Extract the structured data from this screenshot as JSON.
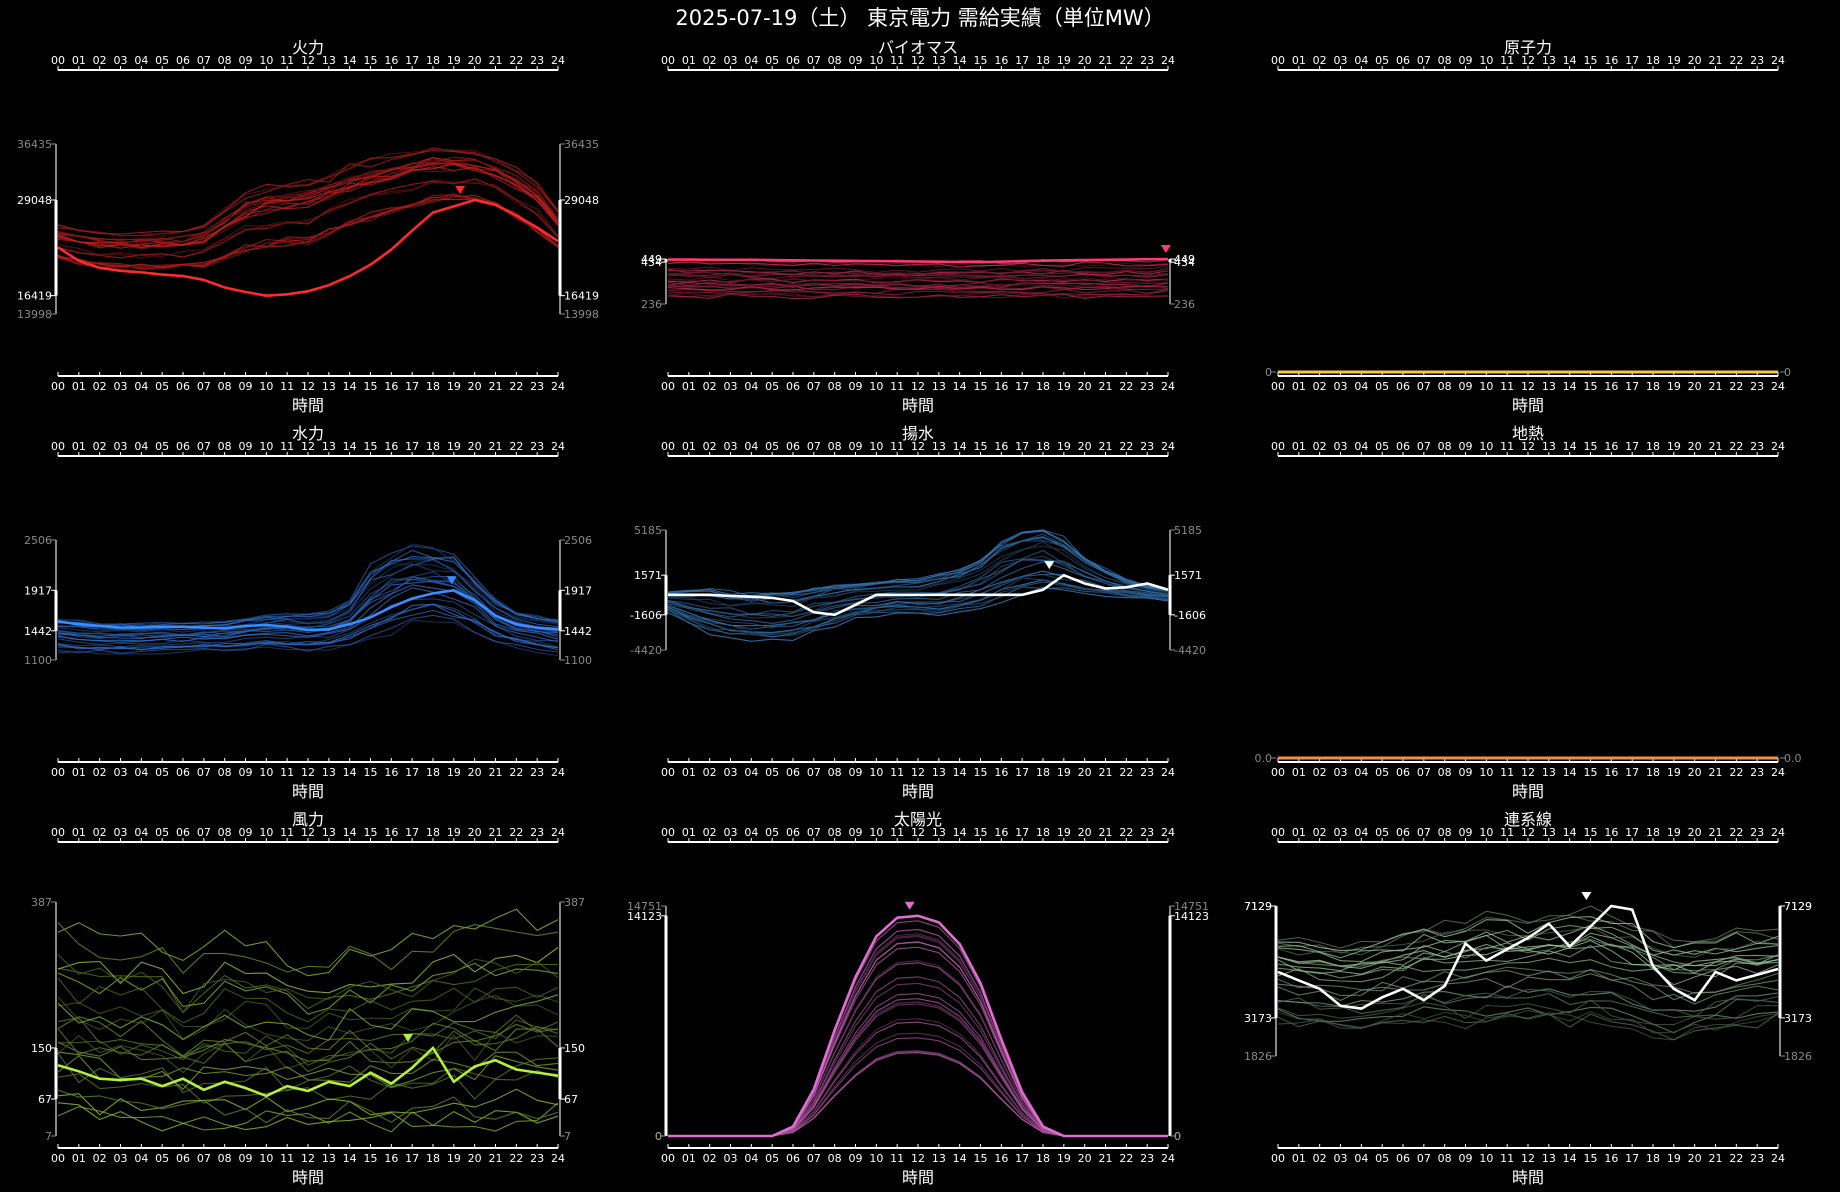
{
  "title": "2025-07-19（土） 東京電力 需給実績（単位MW）",
  "x_axis": {
    "ticks": [
      "00",
      "01",
      "02",
      "03",
      "04",
      "05",
      "06",
      "07",
      "08",
      "09",
      "10",
      "11",
      "12",
      "13",
      "14",
      "15",
      "16",
      "17",
      "18",
      "19",
      "20",
      "21",
      "22",
      "23",
      "24"
    ],
    "label": "時間"
  },
  "chart_data": [
    {
      "type": "line",
      "title": "火力",
      "color": "#ff2a2a",
      "min": 13998,
      "max": 36435,
      "cur_min": 16419,
      "cur_max": 29048,
      "hist_lo": [
        21000,
        20200,
        19800,
        19600,
        19500,
        19500,
        19500,
        19600,
        20500,
        21600,
        22000,
        22200,
        22500,
        23800,
        24800,
        25500,
        26500,
        27200,
        28000,
        28600,
        28400,
        27500,
        25800,
        24300,
        22000
      ],
      "hist_hi": [
        26000,
        25500,
        25100,
        25000,
        25000,
        25200,
        25500,
        26200,
        28500,
        30500,
        31500,
        32000,
        32300,
        33000,
        34500,
        35000,
        35600,
        36100,
        36435,
        36300,
        36000,
        35500,
        34000,
        32000,
        28000
      ],
      "current": [
        22800,
        21000,
        20100,
        19700,
        19500,
        19200,
        19000,
        18500,
        17500,
        16900,
        16419,
        16600,
        17000,
        17800,
        19000,
        20500,
        22500,
        25000,
        27400,
        28200,
        29048,
        28400,
        27000,
        25400,
        23600
      ],
      "peak_hour": 19.3
    },
    {
      "type": "line",
      "title": "バイオマス",
      "color": "#ff3a72",
      "min": 236,
      "max": 449,
      "cur_min": 434,
      "cur_max": 449,
      "hist_lo": [
        270,
        270,
        268,
        268,
        268,
        268,
        268,
        268,
        268,
        268,
        268,
        268,
        268,
        268,
        268,
        268,
        268,
        268,
        268,
        268,
        268,
        268,
        268,
        268,
        270
      ],
      "hist_hi": [
        448,
        448,
        447,
        446,
        446,
        444,
        444,
        443,
        442,
        441,
        440,
        440,
        440,
        440,
        440,
        441,
        442,
        443,
        445,
        446,
        446,
        446,
        447,
        448,
        449
      ],
      "current": [
        446,
        446,
        445,
        445,
        445,
        444,
        443,
        442,
        441,
        440,
        439,
        438,
        437,
        436,
        435,
        434,
        436,
        439,
        441,
        443,
        444,
        445,
        446,
        448,
        449
      ],
      "peak_hour": 23.9
    },
    {
      "type": "line",
      "title": "原子力",
      "color": "#f5c742",
      "min": 0,
      "max": 0,
      "cur_min": 0,
      "cur_max": 0,
      "current": [
        0,
        0,
        0,
        0,
        0,
        0,
        0,
        0,
        0,
        0,
        0,
        0,
        0,
        0,
        0,
        0,
        0,
        0,
        0,
        0,
        0,
        0,
        0,
        0,
        0
      ]
    },
    {
      "type": "line",
      "title": "水力",
      "color": "#3a8cff",
      "min": 1100,
      "max": 2506,
      "cur_min": 1442,
      "cur_max": 1917,
      "hist_lo": [
        1200,
        1180,
        1170,
        1170,
        1170,
        1180,
        1190,
        1200,
        1200,
        1210,
        1230,
        1220,
        1200,
        1210,
        1260,
        1300,
        1400,
        1500,
        1550,
        1500,
        1400,
        1300,
        1250,
        1200,
        1150
      ],
      "hist_hi": [
        1600,
        1580,
        1560,
        1560,
        1560,
        1560,
        1560,
        1570,
        1580,
        1620,
        1660,
        1680,
        1680,
        1700,
        1820,
        2250,
        2420,
        2506,
        2480,
        2400,
        2150,
        1850,
        1700,
        1650,
        1620
      ],
      "current": [
        1550,
        1520,
        1500,
        1480,
        1480,
        1490,
        1490,
        1480,
        1470,
        1500,
        1510,
        1490,
        1450,
        1460,
        1520,
        1600,
        1720,
        1820,
        1880,
        1917,
        1800,
        1620,
        1520,
        1480,
        1460
      ],
      "peak_hour": 18.9
    },
    {
      "type": "line",
      "title": "揚水",
      "color": "#4aa8ff",
      "min": -4420,
      "max": 5185,
      "cur_min": -1606,
      "cur_max": 1571,
      "hist_lo": [
        -1400,
        -2400,
        -3200,
        -3500,
        -3700,
        -3800,
        -3600,
        -3100,
        -2500,
        -2000,
        -1700,
        -1500,
        -1600,
        -1700,
        -1400,
        -1100,
        -600,
        0,
        200,
        0,
        0,
        -100,
        -200,
        -300,
        -500
      ],
      "hist_hi": [
        200,
        300,
        300,
        200,
        100,
        100,
        200,
        500,
        800,
        900,
        1000,
        1100,
        1200,
        1600,
        2000,
        2800,
        4200,
        5000,
        5185,
        4500,
        3000,
        2000,
        1200,
        700,
        400
      ],
      "current": [
        0,
        0,
        0,
        -100,
        -150,
        -250,
        -500,
        -1400,
        -1606,
        -800,
        0,
        0,
        0,
        0,
        0,
        0,
        0,
        0,
        400,
        1571,
        900,
        500,
        600,
        900,
        400
      ],
      "peak_hour": 18.3
    },
    {
      "type": "line",
      "title": "地熱",
      "color": "#ff8c3a",
      "min": 0.0,
      "max": 0.0,
      "cur_min": 0.0,
      "cur_max": 0.0,
      "current": [
        0,
        0,
        0,
        0,
        0,
        0,
        0,
        0,
        0,
        0,
        0,
        0,
        0,
        0,
        0,
        0,
        0,
        0,
        0,
        0,
        0,
        0,
        0,
        0,
        0
      ]
    },
    {
      "type": "line",
      "title": "風力",
      "color": "#b4f03c",
      "min": 7,
      "max": 387,
      "cur_min": 67,
      "cur_max": 150,
      "hist_lo": [
        20,
        18,
        15,
        14,
        13,
        12,
        12,
        11,
        11,
        10,
        10,
        10,
        9,
        9,
        9,
        8,
        8,
        8,
        7,
        8,
        9,
        10,
        12,
        14,
        16
      ],
      "hist_hi": [
        380,
        360,
        350,
        340,
        350,
        340,
        300,
        320,
        350,
        340,
        330,
        320,
        300,
        310,
        340,
        330,
        320,
        340,
        360,
        370,
        370,
        380,
        387,
        380,
        375
      ],
      "current": [
        122,
        112,
        100,
        98,
        100,
        88,
        100,
        82,
        95,
        85,
        72,
        88,
        80,
        95,
        88,
        110,
        92,
        118,
        150,
        95,
        120,
        130,
        115,
        110,
        105
      ],
      "peak_hour": 16.8
    },
    {
      "type": "area",
      "title": "太陽光",
      "color": "#e06ed0",
      "min": 0,
      "max": 14751,
      "cur_min": 0,
      "cur_max": 14123,
      "current": [
        0,
        0,
        0,
        0,
        0,
        0,
        600,
        3000,
        6800,
        10200,
        12800,
        14000,
        14123,
        13700,
        12300,
        9800,
        6200,
        2800,
        600,
        0,
        0,
        0,
        0,
        0,
        0
      ],
      "peak_hour": 11.6
    },
    {
      "type": "line",
      "title": "連系線",
      "color": "#b4e8b4",
      "min": 1826,
      "max": 7129,
      "cur_min": 3173,
      "cur_max": 7129,
      "hist_lo": [
        3100,
        3000,
        2900,
        2800,
        2800,
        2900,
        3000,
        3100,
        3000,
        2900,
        3000,
        3100,
        3200,
        3100,
        3000,
        3100,
        2900,
        2700,
        2500,
        2400,
        2600,
        2700,
        2900,
        3000,
        3200
      ],
      "hist_hi": [
        6200,
        6100,
        6000,
        5900,
        6000,
        6100,
        6300,
        6500,
        6600,
        6700,
        6900,
        6800,
        6700,
        6900,
        7000,
        7129,
        6900,
        6700,
        6400,
        6200,
        6000,
        6200,
        6400,
        6300,
        6300
      ],
      "current": [
        4800,
        4500,
        4200,
        3600,
        3500,
        3900,
        4200,
        3800,
        4300,
        5800,
        5200,
        5600,
        6000,
        6500,
        5700,
        6400,
        7129,
        7000,
        5000,
        4200,
        3800,
        4800,
        4500,
        4700,
        4900
      ],
      "peak_hour": 14.8
    }
  ]
}
